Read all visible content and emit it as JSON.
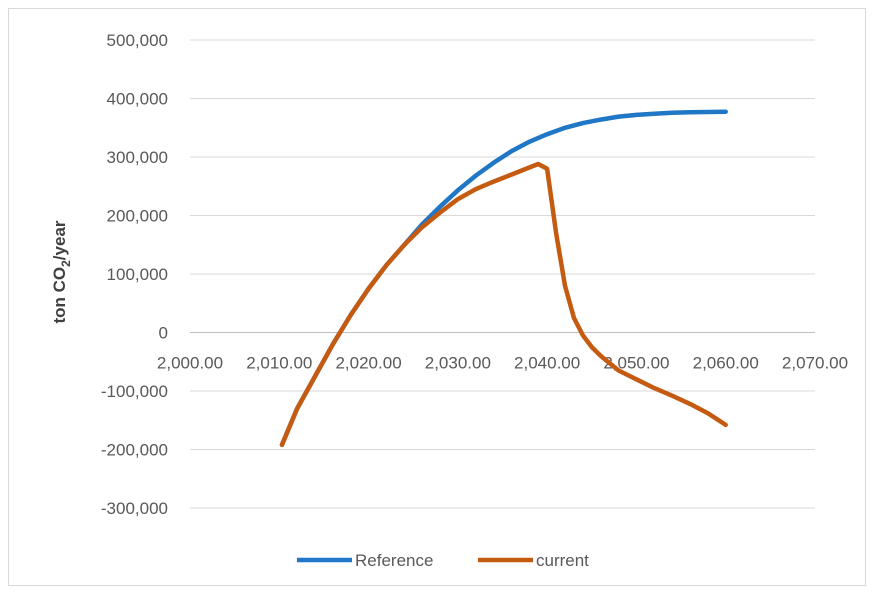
{
  "chart_data": {
    "type": "line",
    "ylabel": "ton CO2/year",
    "ylabel_parts": {
      "prefix": "ton CO",
      "subscript": "2",
      "suffix": "/year"
    },
    "xlim": [
      2000,
      2070
    ],
    "ylim": [
      -300000,
      500000
    ],
    "x_ticks": [
      2000,
      2010,
      2020,
      2030,
      2040,
      2050,
      2060,
      2070
    ],
    "x_tick_labels": [
      "2,000.00",
      "2,010.00",
      "2,020.00",
      "2,030.00",
      "2,040.00",
      "2,050.00",
      "2,060.00",
      "2,070.00"
    ],
    "y_ticks": [
      500000,
      400000,
      300000,
      200000,
      100000,
      0,
      -100000,
      -200000,
      -300000
    ],
    "y_tick_labels": [
      "500,000",
      "400,000",
      "300,000",
      "200,000",
      "100,000",
      "0",
      "-100,000",
      "-200,000",
      "-300,000"
    ],
    "grid": "horizontal",
    "legend_position": "bottom",
    "series": [
      {
        "name": "Reference",
        "color": "#1f77c6",
        "x": [
          2010.3,
          2012,
          2014,
          2016,
          2018,
          2020,
          2022,
          2024,
          2026,
          2028,
          2030,
          2032,
          2034,
          2036,
          2038,
          2040,
          2042,
          2044,
          2046,
          2048,
          2050,
          2052,
          2054,
          2056,
          2058,
          2060
        ],
        "y": [
          -192000,
          -130000,
          -75000,
          -20000,
          30000,
          75000,
          115000,
          150000,
          185000,
          215000,
          243000,
          268000,
          290000,
          310000,
          326000,
          339000,
          350000,
          358000,
          364000,
          369000,
          372000,
          374000,
          375500,
          376500,
          377000,
          377500
        ]
      },
      {
        "name": "current",
        "color": "#c55a11",
        "x": [
          2010.3,
          2012,
          2014,
          2016,
          2018,
          2020,
          2022,
          2024,
          2026,
          2028,
          2030,
          2032,
          2034,
          2036,
          2038,
          2039,
          2040,
          2041,
          2042,
          2043,
          2044,
          2045,
          2046,
          2048,
          2050,
          2052,
          2054,
          2056,
          2058,
          2060
        ],
        "y": [
          -192000,
          -130000,
          -75000,
          -20000,
          30000,
          75000,
          115000,
          150000,
          180000,
          205000,
          228000,
          245000,
          258000,
          270000,
          282000,
          288000,
          280000,
          170000,
          80000,
          25000,
          -5000,
          -25000,
          -40000,
          -65000,
          -80000,
          -95000,
          -108000,
          -122000,
          -138000,
          -158000
        ]
      }
    ]
  }
}
